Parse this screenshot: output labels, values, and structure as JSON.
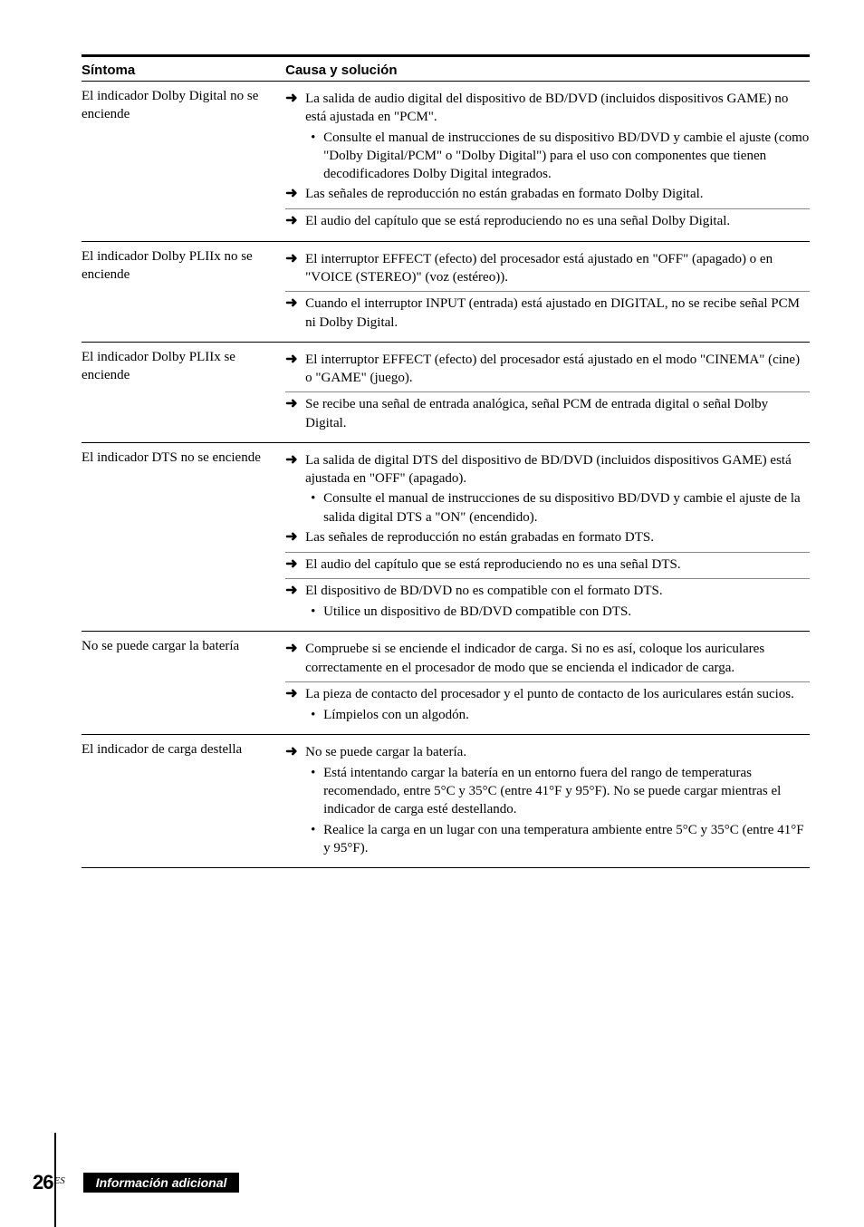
{
  "header": {
    "symptom": "Síntoma",
    "cause": "Causa y solución"
  },
  "sections": [
    {
      "symptom": "El indicador Dolby Digital no se enciende",
      "groups": [
        {
          "items": [
            {
              "type": "arrow",
              "text": "La salida de audio digital del dispositivo de BD/DVD (incluidos dispositivos GAME) no está ajustada en \"PCM\"."
            },
            {
              "type": "bullet",
              "text": "Consulte el manual de instrucciones de su dispositivo BD/DVD y cambie el ajuste (como \"Dolby Digital/PCM\" o \"Dolby Digital\") para el uso con componentes que tienen decodificadores Dolby Digital integrados."
            },
            {
              "type": "arrow",
              "text": "Las señales de reproducción no están grabadas en formato Dolby Digital."
            }
          ]
        },
        {
          "items": [
            {
              "type": "arrow",
              "text": "El audio del capítulo que se está reproduciendo no es una señal Dolby Digital."
            }
          ]
        }
      ]
    },
    {
      "symptom": "El indicador Dolby PLIIx no se enciende",
      "groups": [
        {
          "items": [
            {
              "type": "arrow",
              "text": "El interruptor EFFECT (efecto) del procesador está ajustado en \"OFF\" (apagado) o en \"VOICE (STEREO)\" (voz (estéreo))."
            }
          ]
        },
        {
          "items": [
            {
              "type": "arrow",
              "text": "Cuando el interruptor INPUT (entrada) está ajustado en DIGITAL, no se recibe señal PCM ni Dolby Digital."
            }
          ]
        }
      ]
    },
    {
      "symptom": "El indicador Dolby PLIIx se enciende",
      "groups": [
        {
          "items": [
            {
              "type": "arrow",
              "text": "El interruptor EFFECT (efecto) del procesador está ajustado en el modo \"CINEMA\" (cine) o \"GAME\" (juego)."
            }
          ]
        },
        {
          "items": [
            {
              "type": "arrow",
              "text": "Se recibe una señal de entrada analógica, señal PCM de entrada digital o señal Dolby Digital."
            }
          ]
        }
      ]
    },
    {
      "symptom": "El indicador DTS no se enciende",
      "groups": [
        {
          "items": [
            {
              "type": "arrow",
              "text": "La salida de digital DTS del dispositivo de BD/DVD (incluidos dispositivos GAME) está ajustada en \"OFF\" (apagado)."
            },
            {
              "type": "bullet",
              "text": "Consulte el manual de instrucciones de su dispositivo BD/DVD y cambie el ajuste de la salida digital DTS a \"ON\" (encendido)."
            },
            {
              "type": "arrow",
              "text": "Las señales de reproducción no están grabadas en formato DTS."
            }
          ]
        },
        {
          "items": [
            {
              "type": "arrow",
              "text": "El audio del capítulo que se está reproduciendo no es una señal DTS."
            }
          ]
        },
        {
          "items": [
            {
              "type": "arrow",
              "text": "El dispositivo de BD/DVD no es compatible con el formato DTS."
            },
            {
              "type": "bullet",
              "text": "Utilice un dispositivo de BD/DVD compatible con DTS."
            }
          ]
        }
      ]
    },
    {
      "symptom": "No se puede cargar la batería",
      "groups": [
        {
          "items": [
            {
              "type": "arrow",
              "text": "Compruebe si se enciende el indicador de carga. Si no es así, coloque los auriculares correctamente en el procesador de modo que se encienda el indicador de carga."
            }
          ]
        },
        {
          "items": [
            {
              "type": "arrow",
              "text": "La pieza de contacto del procesador y el punto de contacto de los auriculares están sucios."
            },
            {
              "type": "bullet",
              "text": "Límpielos con un algodón."
            }
          ]
        }
      ]
    },
    {
      "symptom": "El indicador de carga destella",
      "groups": [
        {
          "items": [
            {
              "type": "arrow",
              "text": "No se puede cargar la batería."
            },
            {
              "type": "bullet",
              "text": "Está intentando cargar la batería en un entorno fuera del rango de temperaturas recomendado, entre 5°C y 35°C (entre 41°F y 95°F). No se puede cargar mientras el indicador de carga esté destellando."
            },
            {
              "type": "bullet",
              "text": "Realice la carga en un lugar con una temperatura ambiente entre 5°C y 35°C (entre 41°F y 95°F)."
            }
          ]
        }
      ]
    }
  ],
  "footer": {
    "page": "26",
    "lang": "ES",
    "label": "Información adicional"
  }
}
